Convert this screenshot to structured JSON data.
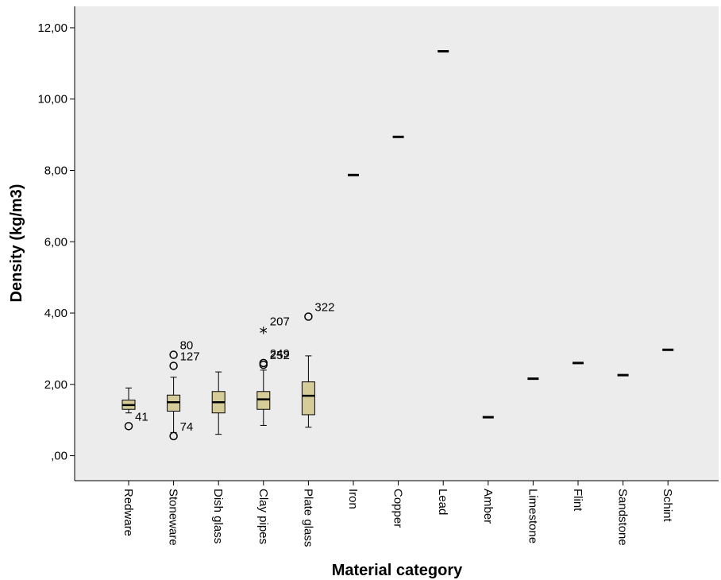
{
  "chart_data": {
    "type": "boxplot",
    "title": "",
    "xlabel": "Material category",
    "ylabel": "Density (kg/m3)",
    "ylim": [
      -0.7,
      12.6
    ],
    "yticks": [
      0,
      2,
      4,
      6,
      8,
      10,
      12
    ],
    "ytick_labels": [
      ",00",
      "2,00",
      "4,00",
      "6,00",
      "8,00",
      "10,00",
      "12,00"
    ],
    "grid": false,
    "plot_background": "#ececec",
    "box_fill": "#d6cc9a",
    "categories": [
      "Redware",
      "Stoneware",
      "Dish glass",
      "Clay pipes",
      "Plate glass",
      "Iron",
      "Copper",
      "Lead",
      "Amber",
      "Limestone",
      "Flint",
      "Sandstone",
      "Schint"
    ],
    "boxes": [
      {
        "category": "Redware",
        "whisker_low": 1.2,
        "q1": 1.3,
        "median": 1.42,
        "q3": 1.56,
        "whisker_high": 1.9
      },
      {
        "category": "Stoneware",
        "whisker_low": 0.65,
        "q1": 1.25,
        "median": 1.5,
        "q3": 1.7,
        "whisker_high": 2.2
      },
      {
        "category": "Dish glass",
        "whisker_low": 0.6,
        "q1": 1.2,
        "median": 1.5,
        "q3": 1.8,
        "whisker_high": 2.35
      },
      {
        "category": "Clay pipes",
        "whisker_low": 0.85,
        "q1": 1.3,
        "median": 1.58,
        "q3": 1.8,
        "whisker_high": 2.4
      },
      {
        "category": "Plate glass",
        "whisker_low": 0.8,
        "q1": 1.15,
        "median": 1.68,
        "q3": 2.07,
        "whisker_high": 2.8
      },
      {
        "category": "Iron",
        "median": 7.87
      },
      {
        "category": "Copper",
        "median": 8.94
      },
      {
        "category": "Lead",
        "median": 11.34
      },
      {
        "category": "Amber",
        "median": 1.08
      },
      {
        "category": "Limestone",
        "median": 2.16
      },
      {
        "category": "Flint",
        "median": 2.6
      },
      {
        "category": "Sandstone",
        "median": 2.26
      },
      {
        "category": "Schint",
        "median": 2.97
      }
    ],
    "outliers": [
      {
        "category": "Redware",
        "value": 0.83,
        "marker": "circle",
        "label": "41"
      },
      {
        "category": "Stoneware",
        "value": 2.83,
        "marker": "circle",
        "label": "80"
      },
      {
        "category": "Stoneware",
        "value": 2.52,
        "marker": "circle",
        "label": "127"
      },
      {
        "category": "Stoneware",
        "value": 0.55,
        "marker": "circle",
        "label": "74"
      },
      {
        "category": "Clay pipes",
        "value": 3.5,
        "marker": "star",
        "label": "207"
      },
      {
        "category": "Clay pipes",
        "value": 2.6,
        "marker": "circle",
        "label": "249"
      },
      {
        "category": "Clay pipes",
        "value": 2.55,
        "marker": "circle",
        "label": "252"
      },
      {
        "category": "Plate glass",
        "value": 3.9,
        "marker": "circle",
        "label": "322"
      }
    ]
  }
}
